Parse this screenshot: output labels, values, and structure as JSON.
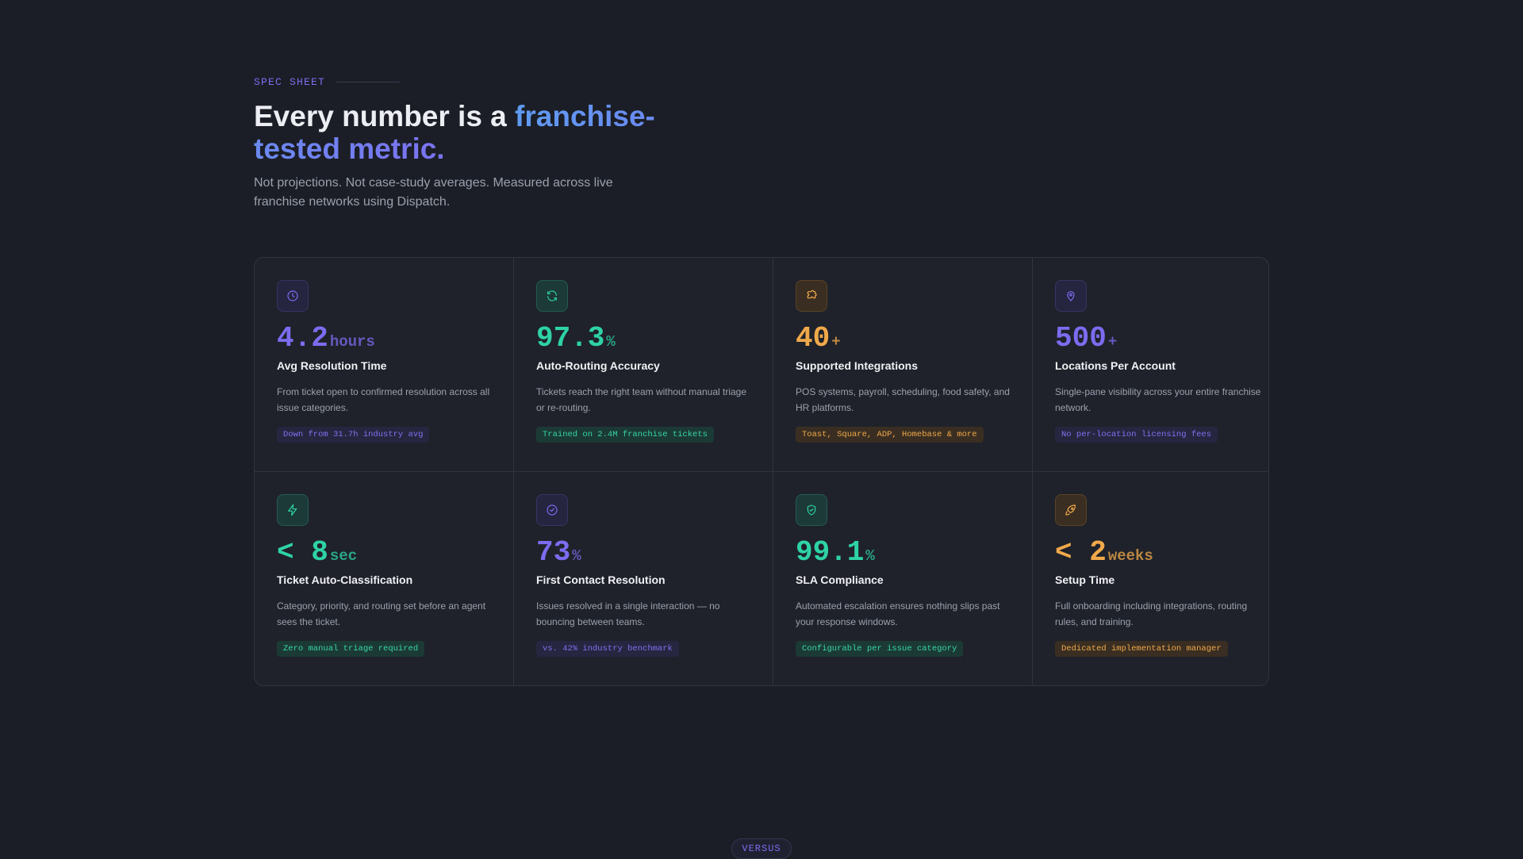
{
  "header": {
    "eyebrow": "SPEC SHEET",
    "headline_lead": "Every number is a ",
    "headline_accent": "franchise-tested metric.",
    "subhead": "Not projections. Not case-study averages. Measured across live franchise networks using Dispatch."
  },
  "colors": {
    "purple": "#7c6cf0",
    "teal": "#2ed3a5",
    "orange": "#f0a94a",
    "background": "#1b1e26",
    "card": "#1f222a"
  },
  "cards": [
    {
      "icon": "clock-icon",
      "accent": "purple",
      "value": "4.2",
      "unit": "hours",
      "title": "Avg Resolution Time",
      "desc": "From ticket open to confirmed resolution across all issue categories.",
      "chip": "Down from 31.7h industry avg"
    },
    {
      "icon": "refresh-icon",
      "accent": "teal",
      "value": "97.3",
      "unit": "%",
      "title": "Auto-Routing Accuracy",
      "desc": "Tickets reach the right team without manual triage or re-routing.",
      "chip": "Trained on 2.4M franchise tickets"
    },
    {
      "icon": "puzzle-icon",
      "accent": "orange",
      "value": "40",
      "unit": "+",
      "title": "Supported Integrations",
      "desc": "POS systems, payroll, scheduling, food safety, and HR platforms.",
      "chip": "Toast, Square, ADP, Homebase & more"
    },
    {
      "icon": "map-pin-icon",
      "accent": "purple",
      "value": "500",
      "unit": "+",
      "title": "Locations Per Account",
      "desc": "Single-pane visibility across your entire franchise network.",
      "chip": "No per-location licensing fees"
    },
    {
      "icon": "lightning-icon",
      "accent": "teal",
      "value": "< 8",
      "unit": "sec",
      "title": "Ticket Auto-Classification",
      "desc": "Category, priority, and routing set before an agent sees the ticket.",
      "chip": "Zero manual triage required"
    },
    {
      "icon": "check-circle-icon",
      "accent": "purple",
      "value": "73",
      "unit": "%",
      "title": "First Contact Resolution",
      "desc": "Issues resolved in a single interaction — no bouncing between teams.",
      "chip": "vs. 42% industry benchmark"
    },
    {
      "icon": "shield-check-icon",
      "accent": "teal",
      "value": "99.1",
      "unit": "%",
      "title": "SLA Compliance",
      "desc": "Automated escalation ensures nothing slips past your response windows.",
      "chip": "Configurable per issue category"
    },
    {
      "icon": "rocket-icon",
      "accent": "orange",
      "value": "< 2",
      "unit": "weeks",
      "title": "Setup Time",
      "desc": "Full onboarding including integrations, routing rules, and training.",
      "chip": "Dedicated implementation manager"
    }
  ],
  "versus_label": "VERSUS"
}
